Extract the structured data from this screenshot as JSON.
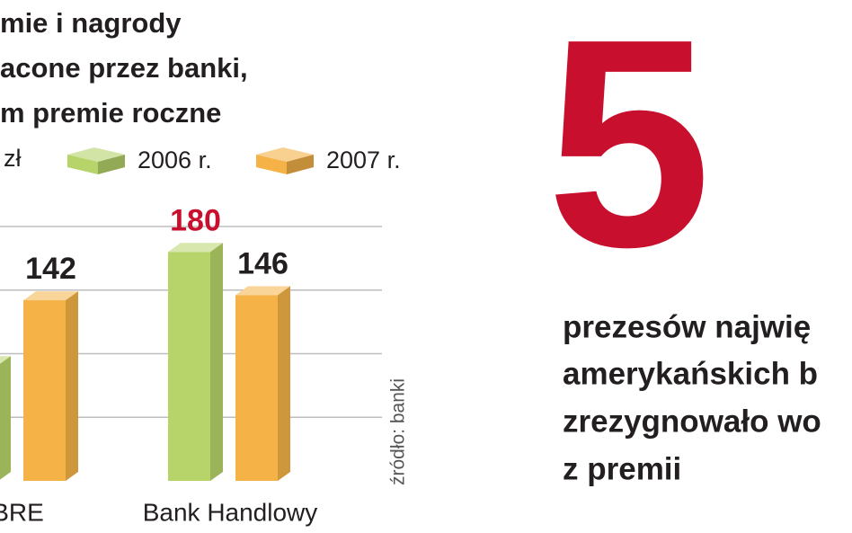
{
  "chart_data": {
    "type": "bar3d",
    "title": [
      "mie i nagrody",
      "acone przez banki,",
      "m premie roczne"
    ],
    "unit": "zł",
    "source": "źródło: banki",
    "categories": [
      "BRE",
      "Bank Handlowy"
    ],
    "series": [
      {
        "name": "2006 r.",
        "color": "#b6d46a",
        "values": [
          91,
          180
        ],
        "label_colors": [
          "#231f20",
          "#c8102e"
        ]
      },
      {
        "name": "2007 r.",
        "color": "#f4b247",
        "values": [
          142,
          146
        ],
        "label_colors": [
          "#231f20",
          "#231f20"
        ]
      }
    ],
    "ylim": [
      0,
      200
    ],
    "yticks": [
      50,
      100,
      150,
      200
    ],
    "grid": true
  },
  "callout": {
    "figure": "5",
    "lines": [
      "prezesów najwię",
      "amerykańskich b",
      "zrezygnowało wo",
      "z premii"
    ]
  }
}
